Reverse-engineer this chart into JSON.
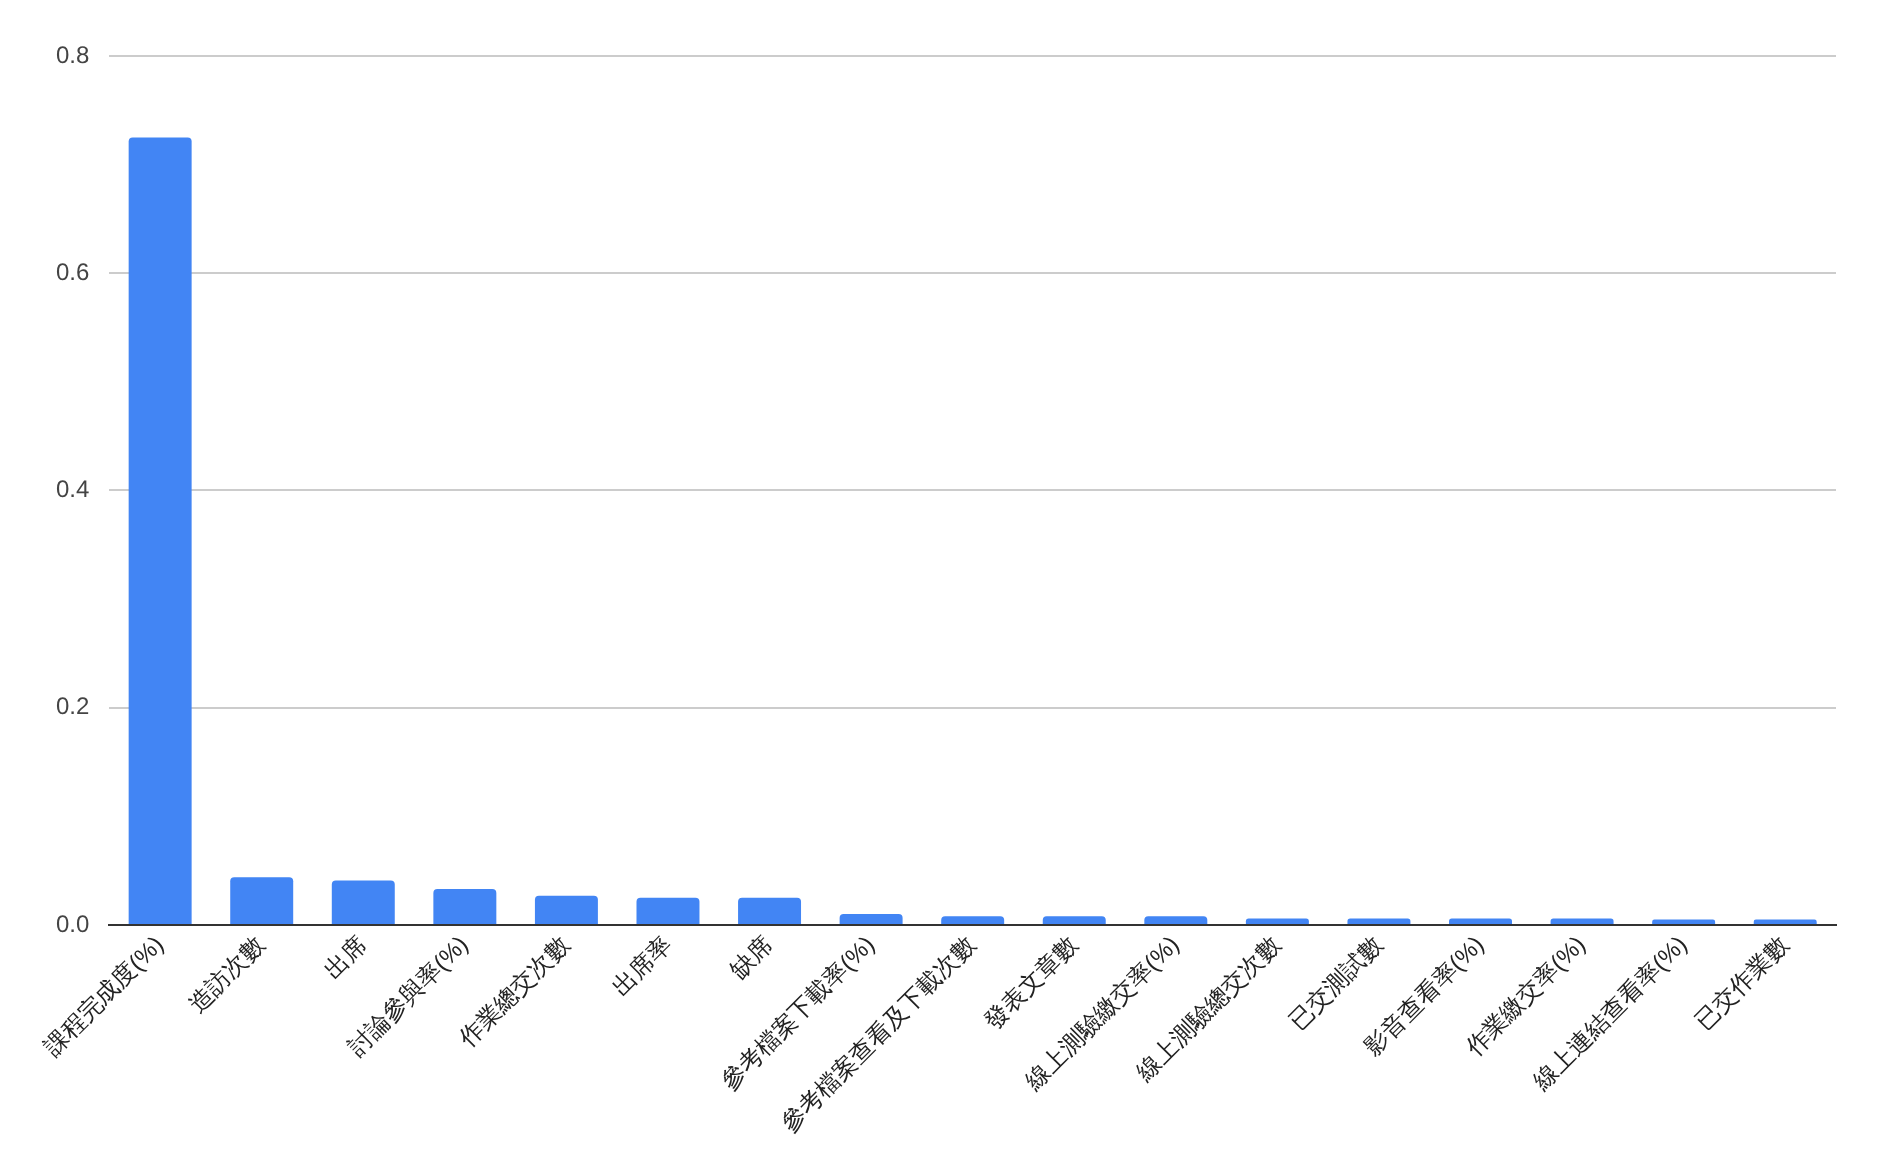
{
  "chart_data": {
    "type": "bar",
    "categories": [
      "課程完成度(%)",
      "造訪次數",
      "出席",
      "討論參與率(%)",
      "作業總交次數",
      "出席率",
      "缺席",
      "參考檔案下載率(%)",
      "參考檔案查看及下載次數",
      "發表文章數",
      "線上測驗繳交率(%)",
      "線上測驗總交次數",
      "已交測試數",
      "影音查看率(%)",
      "作業繳交率(%)",
      "線上連結查看率(%)",
      "已交作業數"
    ],
    "values": [
      0.725,
      0.044,
      0.041,
      0.033,
      0.027,
      0.025,
      0.025,
      0.01,
      0.008,
      0.008,
      0.008,
      0.006,
      0.006,
      0.006,
      0.006,
      0.005,
      0.005
    ],
    "color": "#4285f4",
    "ylim": [
      0,
      0.8
    ],
    "yticks": [
      {
        "value": 0,
        "label": "0.0"
      },
      {
        "value": 0.2,
        "label": "0.2"
      },
      {
        "value": 0.4,
        "label": "0.4"
      },
      {
        "value": 0.6,
        "label": "0.6"
      },
      {
        "value": 0.8,
        "label": "0.8"
      }
    ],
    "grid": "y"
  }
}
